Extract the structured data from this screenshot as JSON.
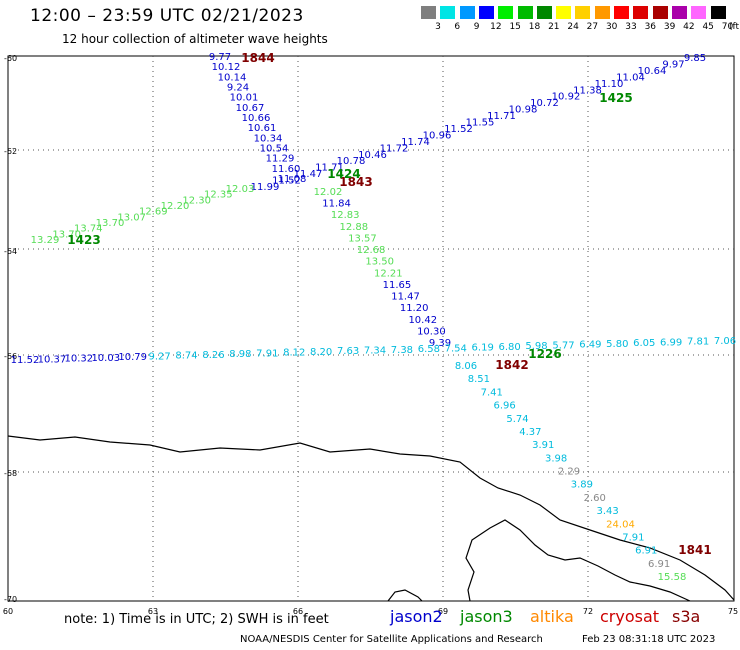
{
  "header": {
    "title": "12:00 – 23:59 UTC 02/21/2023",
    "subtitle": "12 hour collection of altimeter wave heights"
  },
  "scale": {
    "unit": "(ft)",
    "bins": [
      {
        "label": "3",
        "color": "#7f7f7f"
      },
      {
        "label": "6",
        "color": "#00e5e5"
      },
      {
        "label": "9",
        "color": "#0099ff"
      },
      {
        "label": "12",
        "color": "#0000ff"
      },
      {
        "label": "15",
        "color": "#00ee00"
      },
      {
        "label": "18",
        "color": "#00bb00"
      },
      {
        "label": "21",
        "color": "#008800"
      },
      {
        "label": "24",
        "color": "#ffff00"
      },
      {
        "label": "27",
        "color": "#ffd000"
      },
      {
        "label": "30",
        "color": "#ff9900"
      },
      {
        "label": "33",
        "color": "#ff0000"
      },
      {
        "label": "36",
        "color": "#dd0000"
      },
      {
        "label": "39",
        "color": "#aa0000"
      },
      {
        "label": "42",
        "color": "#aa00aa"
      },
      {
        "label": "45",
        "color": "#ff66ff"
      },
      {
        "label": "70",
        "color": "#000000"
      }
    ]
  },
  "axes": {
    "lat_labels": [
      "-60",
      "-62",
      "-64",
      "-66",
      "-68",
      "-70"
    ],
    "lon_labels": [
      "60",
      "63",
      "66",
      "69",
      "72",
      "75"
    ]
  },
  "colors": {
    "jason2": "#0000cc",
    "jason3": "#008800",
    "altika": "#ff8800",
    "cryosat": "#cc0000",
    "s3a": "#880000",
    "blue": "#0000cc",
    "lgreen": "#55dd55",
    "green": "#008800",
    "cyan": "#00bbdd",
    "gray": "#888888",
    "orange": "#ffaa00",
    "maroon": "#800000"
  },
  "tracks": [
    {
      "time": "1844",
      "time_color": "maroon",
      "points": [
        {
          "v": "9.77",
          "c": "blue"
        },
        {
          "v": "10.12",
          "c": "blue"
        },
        {
          "v": "10.14",
          "c": "blue"
        },
        {
          "v": "9.24",
          "c": "blue"
        },
        {
          "v": "10.01",
          "c": "blue"
        },
        {
          "v": "10.67",
          "c": "blue"
        },
        {
          "v": "10.66",
          "c": "blue"
        },
        {
          "v": "10.61",
          "c": "blue"
        },
        {
          "v": "10.34",
          "c": "blue"
        },
        {
          "v": "10.54",
          "c": "blue"
        },
        {
          "v": "11.29",
          "c": "blue"
        },
        {
          "v": "11.60",
          "c": "blue"
        },
        {
          "v": "11.08",
          "c": "blue"
        }
      ]
    },
    {
      "time": "1843",
      "time_color": "maroon",
      "points": [
        {
          "v": "12.02",
          "c": "lgreen"
        },
        {
          "v": "11.84",
          "c": "blue"
        },
        {
          "v": "12.83",
          "c": "lgreen"
        },
        {
          "v": "12.88",
          "c": "lgreen"
        },
        {
          "v": "13.57",
          "c": "lgreen"
        },
        {
          "v": "12.68",
          "c": "lgreen"
        },
        {
          "v": "13.50",
          "c": "lgreen"
        },
        {
          "v": "12.21",
          "c": "lgreen"
        },
        {
          "v": "11.65",
          "c": "blue"
        },
        {
          "v": "11.47",
          "c": "blue"
        },
        {
          "v": "11.20",
          "c": "blue"
        },
        {
          "v": "10.42",
          "c": "blue"
        },
        {
          "v": "10.30",
          "c": "blue"
        },
        {
          "v": "9.39",
          "c": "blue"
        }
      ]
    },
    {
      "time": "1842",
      "time_color": "maroon",
      "points": [
        {
          "v": "8.06",
          "c": "cyan"
        },
        {
          "v": "8.51",
          "c": "cyan"
        },
        {
          "v": "7.41",
          "c": "cyan"
        },
        {
          "v": "6.96",
          "c": "cyan"
        },
        {
          "v": "5.74",
          "c": "cyan"
        },
        {
          "v": "4.37",
          "c": "cyan"
        },
        {
          "v": "3.91",
          "c": "cyan"
        },
        {
          "v": "3.98",
          "c": "cyan"
        },
        {
          "v": "2.29",
          "c": "gray"
        },
        {
          "v": "3.89",
          "c": "cyan"
        },
        {
          "v": "2.60",
          "c": "gray"
        },
        {
          "v": "3.43",
          "c": "cyan"
        },
        {
          "v": "24.04",
          "c": "orange"
        },
        {
          "v": "7.91",
          "c": "cyan"
        },
        {
          "v": "6.91",
          "c": "cyan"
        },
        {
          "v": "6.91",
          "c": "gray"
        },
        {
          "v": "15.58",
          "c": "lgreen"
        }
      ]
    },
    {
      "time": "1841",
      "time_color": "maroon",
      "points": []
    },
    {
      "time": "1425",
      "time_color": "green",
      "points": [
        {
          "v": "9.85",
          "c": "blue"
        },
        {
          "v": "9.97",
          "c": "blue"
        },
        {
          "v": "10.64",
          "c": "blue"
        },
        {
          "v": "11.04",
          "c": "blue"
        },
        {
          "v": "11.10",
          "c": "blue"
        },
        {
          "v": "11.38",
          "c": "blue"
        },
        {
          "v": "10.92",
          "c": "blue"
        },
        {
          "v": "10.72",
          "c": "blue"
        },
        {
          "v": "10.98",
          "c": "blue"
        },
        {
          "v": "11.71",
          "c": "blue"
        },
        {
          "v": "11.55",
          "c": "blue"
        },
        {
          "v": "11.52",
          "c": "blue"
        },
        {
          "v": "10.96",
          "c": "blue"
        },
        {
          "v": "11.74",
          "c": "blue"
        },
        {
          "v": "11.72",
          "c": "blue"
        },
        {
          "v": "10.46",
          "c": "blue"
        },
        {
          "v": "10.78",
          "c": "blue"
        },
        {
          "v": "11.71",
          "c": "blue"
        },
        {
          "v": "11.47",
          "c": "blue"
        },
        {
          "v": "11.52",
          "c": "blue"
        },
        {
          "v": "11.99",
          "c": "blue"
        }
      ]
    },
    {
      "time": "1424",
      "time_color": "green",
      "points": []
    },
    {
      "time": "1423",
      "time_color": "green",
      "points": [
        {
          "v": "12.03",
          "c": "lgreen"
        },
        {
          "v": "12.35",
          "c": "lgreen"
        },
        {
          "v": "12.30",
          "c": "lgreen"
        },
        {
          "v": "12.20",
          "c": "lgreen"
        },
        {
          "v": "12.69",
          "c": "lgreen"
        },
        {
          "v": "13.07",
          "c": "lgreen"
        },
        {
          "v": "13.70",
          "c": "lgreen"
        },
        {
          "v": "13.74",
          "c": "lgreen"
        },
        {
          "v": "13.70",
          "c": "lgreen"
        },
        {
          "v": "13.29",
          "c": "lgreen"
        }
      ]
    },
    {
      "time": "1226",
      "time_color": "green",
      "points": [
        {
          "v": "7.06",
          "c": "cyan"
        },
        {
          "v": "7.81",
          "c": "cyan"
        },
        {
          "v": "6.99",
          "c": "cyan"
        },
        {
          "v": "6.05",
          "c": "cyan"
        },
        {
          "v": "5.80",
          "c": "cyan"
        },
        {
          "v": "6.49",
          "c": "cyan"
        },
        {
          "v": "5.77",
          "c": "cyan"
        },
        {
          "v": "5.98",
          "c": "cyan"
        },
        {
          "v": "6.80",
          "c": "cyan"
        },
        {
          "v": "6.19",
          "c": "cyan"
        },
        {
          "v": "7.54",
          "c": "cyan"
        },
        {
          "v": "6.58",
          "c": "cyan"
        },
        {
          "v": "7.38",
          "c": "cyan"
        },
        {
          "v": "7.34",
          "c": "cyan"
        },
        {
          "v": "7.63",
          "c": "cyan"
        },
        {
          "v": "8.20",
          "c": "cyan"
        },
        {
          "v": "8.12",
          "c": "cyan"
        },
        {
          "v": "7.91",
          "c": "cyan"
        },
        {
          "v": "8.98",
          "c": "cyan"
        },
        {
          "v": "8.26",
          "c": "cyan"
        },
        {
          "v": "8.74",
          "c": "cyan"
        },
        {
          "v": "9.27",
          "c": "cyan"
        },
        {
          "v": "10.79",
          "c": "blue"
        },
        {
          "v": "10.03",
          "c": "blue"
        },
        {
          "v": "10.32",
          "c": "blue"
        },
        {
          "v": "10.37",
          "c": "blue"
        },
        {
          "v": "11.52",
          "c": "blue"
        }
      ]
    }
  ],
  "footer": {
    "note": "note: 1) Time is in UTC; 2) SWH is in feet",
    "legend": [
      "jason2",
      "jason3",
      "altika",
      "cryosat",
      "s3a"
    ],
    "credit": "NOAA/NESDIS Center for Satellite Applications and Research",
    "timestamp": "Feb 23 08:31:18 UTC 2023"
  }
}
